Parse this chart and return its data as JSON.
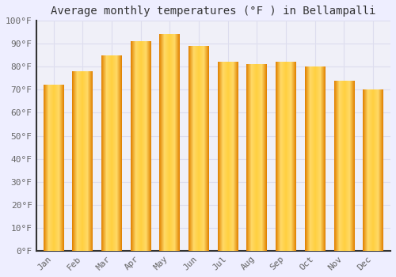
{
  "title": "Average monthly temperatures (°F ) in Bellampalli",
  "months": [
    "Jan",
    "Feb",
    "Mar",
    "Apr",
    "May",
    "Jun",
    "Jul",
    "Aug",
    "Sep",
    "Oct",
    "Nov",
    "Dec"
  ],
  "values": [
    72,
    78,
    85,
    91,
    94,
    89,
    82,
    81,
    82,
    80,
    74,
    70
  ],
  "bar_color_top": "#FFD966",
  "bar_color_bottom": "#E8900A",
  "bar_color_mid": "#FFBE00",
  "ylim": [
    0,
    100
  ],
  "yticks": [
    0,
    10,
    20,
    30,
    40,
    50,
    60,
    70,
    80,
    90,
    100
  ],
  "ytick_labels": [
    "0°F",
    "10°F",
    "20°F",
    "30°F",
    "40°F",
    "50°F",
    "60°F",
    "70°F",
    "80°F",
    "90°F",
    "100°F"
  ],
  "background_color": "#EEEEFF",
  "plot_bg_color": "#F0F0F8",
  "grid_color": "#DDDDEE",
  "title_fontsize": 10,
  "tick_fontsize": 8,
  "spine_color": "#333333",
  "tick_label_color": "#666666"
}
